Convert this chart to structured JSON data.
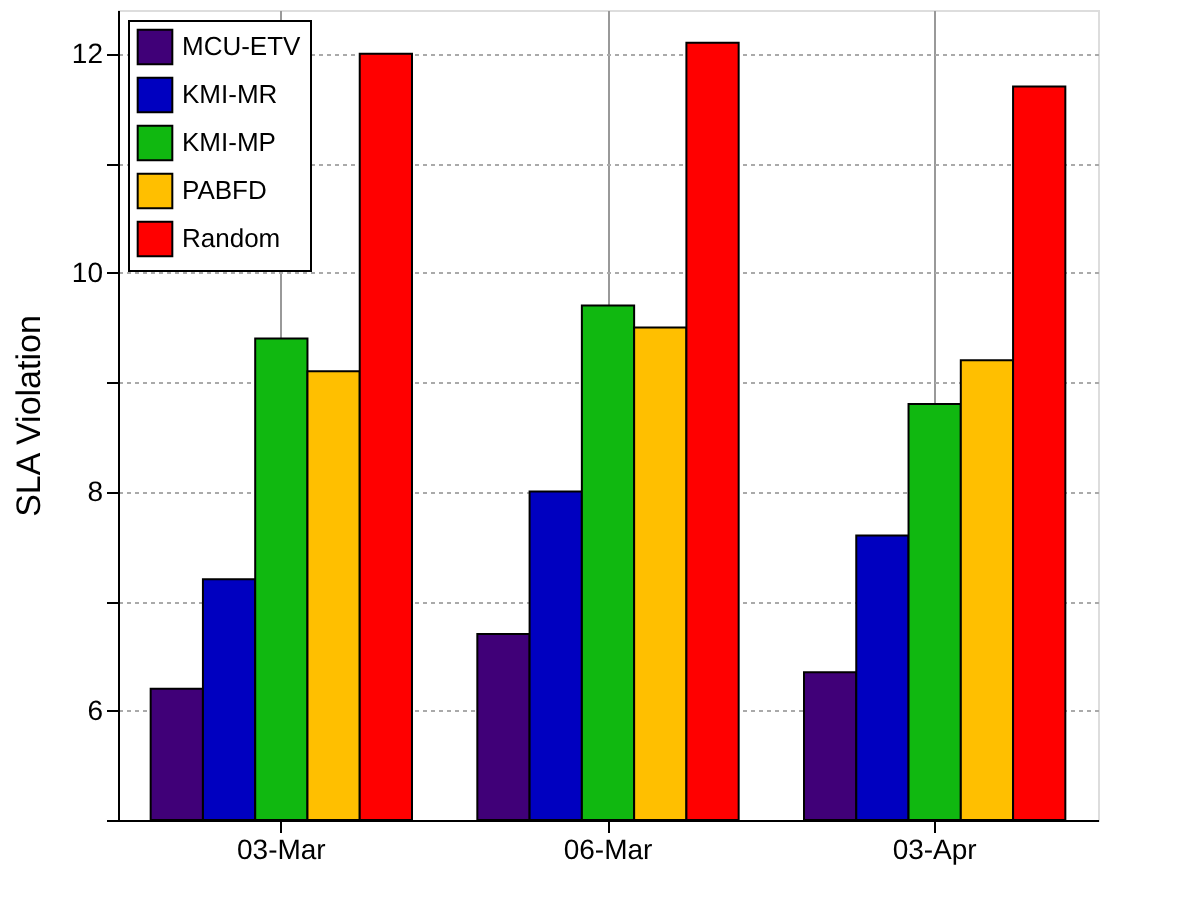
{
  "chart_data": {
    "type": "bar",
    "ylabel": "SLA Violation",
    "categories": [
      "03-Mar",
      "06-Mar",
      "03-Apr"
    ],
    "series": [
      {
        "name": "MCU-ETV",
        "color": "#400078",
        "values": [
          6.2,
          6.7,
          6.35
        ]
      },
      {
        "name": "KMI-MR",
        "color": "#0000c0",
        "values": [
          7.2,
          8.0,
          7.6
        ]
      },
      {
        "name": "KMI-MP",
        "color": "#10b810",
        "values": [
          9.4,
          9.7,
          8.8
        ]
      },
      {
        "name": "PABFD",
        "color": "#ffbf00",
        "values": [
          9.1,
          9.5,
          9.2
        ]
      },
      {
        "name": "Random",
        "color": "#ff0000",
        "values": [
          12.0,
          12.1,
          11.7
        ]
      }
    ],
    "ylim": [
      5,
      12.4
    ],
    "yticks": [
      {
        "value": 5,
        "label": null
      },
      6,
      {
        "value": 7,
        "label": null
      },
      8,
      {
        "value": 9,
        "label": null
      },
      10,
      {
        "value": 11,
        "label": null
      },
      12
    ],
    "grid": true,
    "legend": "top left"
  }
}
